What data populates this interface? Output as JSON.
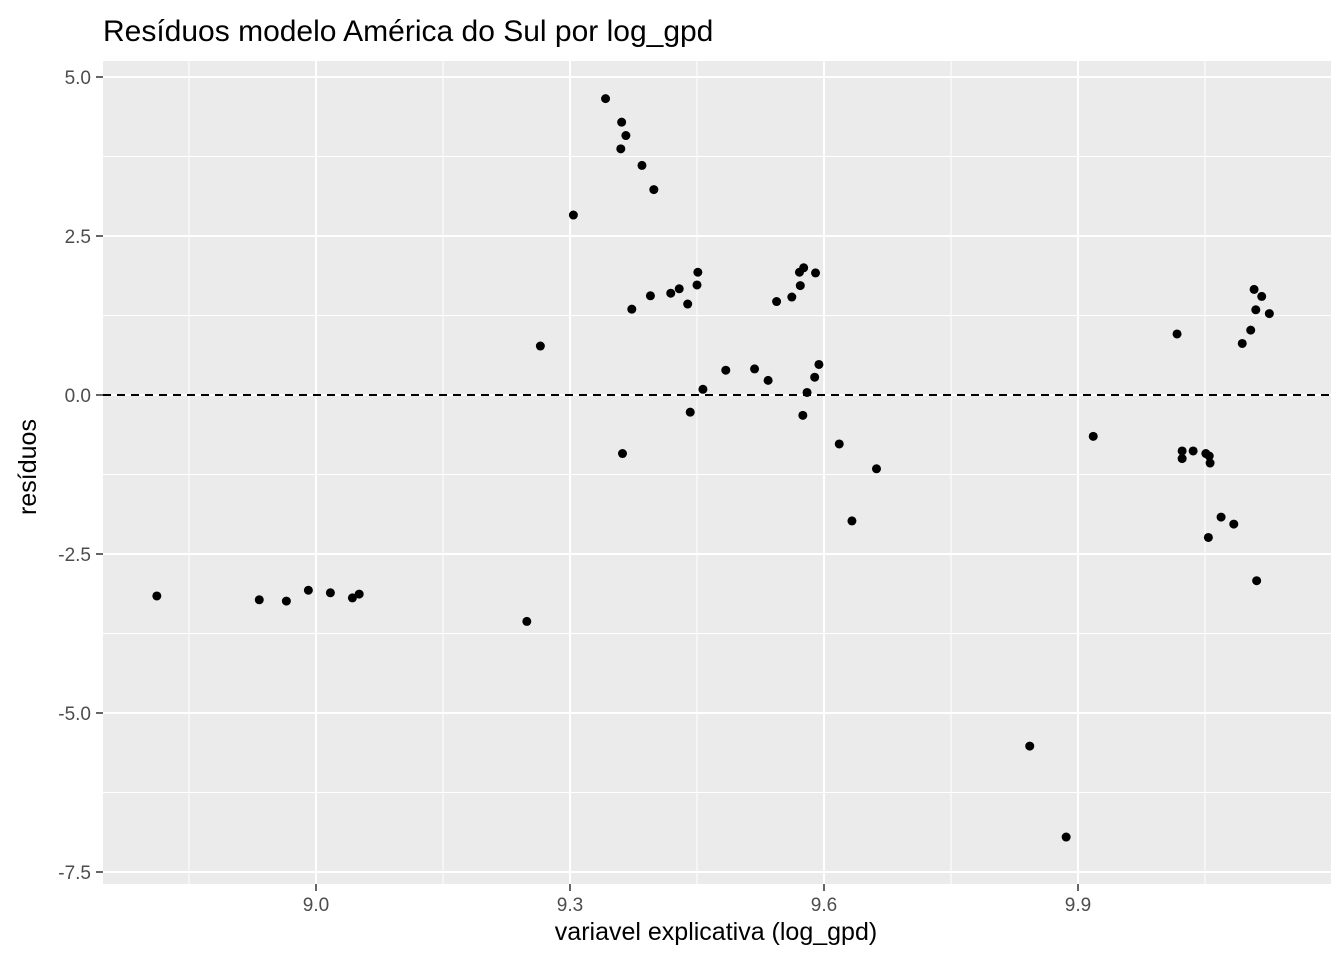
{
  "chart_data": {
    "type": "scatter",
    "title": "Resíduos modelo América do Sul por log_gpd",
    "xlabel": "variavel explicativa (log_gpd)",
    "ylabel": "resíduos",
    "xlim": [
      8.79,
      10.13
    ],
    "ylim": [
      -7.5,
      5.3
    ],
    "x_ticks": [
      9.0,
      9.3,
      9.6,
      9.9
    ],
    "x_tick_labels": [
      "9.0",
      "9.3",
      "9.6",
      "9.9"
    ],
    "y_ticks": [
      5.0,
      2.5,
      0.0,
      -2.5,
      -5.0,
      -7.5
    ],
    "y_tick_labels": [
      "5.0",
      "2.5",
      "0.0",
      "-2.5",
      "-5.0",
      "-7.5"
    ],
    "reference_line": {
      "y": 0.0,
      "style": "dashed"
    },
    "grid": true,
    "colors": {
      "panel_background": "#ebebeb",
      "grid": "#ffffff",
      "points": "#000000"
    },
    "points": [
      {
        "x": 8.812,
        "y": -3.16
      },
      {
        "x": 8.933,
        "y": -3.22
      },
      {
        "x": 8.965,
        "y": -3.24
      },
      {
        "x": 8.991,
        "y": -3.07
      },
      {
        "x": 9.017,
        "y": -3.11
      },
      {
        "x": 9.043,
        "y": -3.19
      },
      {
        "x": 9.051,
        "y": -3.13
      },
      {
        "x": 9.249,
        "y": -3.56
      },
      {
        "x": 9.265,
        "y": 0.77
      },
      {
        "x": 9.304,
        "y": 2.83
      },
      {
        "x": 9.342,
        "y": 4.66
      },
      {
        "x": 9.36,
        "y": 3.87
      },
      {
        "x": 9.361,
        "y": 4.29
      },
      {
        "x": 9.366,
        "y": 4.08
      },
      {
        "x": 9.362,
        "y": -0.92
      },
      {
        "x": 9.373,
        "y": 1.35
      },
      {
        "x": 9.385,
        "y": 3.61
      },
      {
        "x": 9.395,
        "y": 1.56
      },
      {
        "x": 9.399,
        "y": 3.23
      },
      {
        "x": 9.419,
        "y": 1.6
      },
      {
        "x": 9.429,
        "y": 1.67
      },
      {
        "x": 9.439,
        "y": 1.43
      },
      {
        "x": 9.442,
        "y": -0.27
      },
      {
        "x": 9.45,
        "y": 1.73
      },
      {
        "x": 9.451,
        "y": 1.93
      },
      {
        "x": 9.457,
        "y": 0.09
      },
      {
        "x": 9.484,
        "y": 0.39
      },
      {
        "x": 9.518,
        "y": 0.41
      },
      {
        "x": 9.534,
        "y": 0.23
      },
      {
        "x": 9.544,
        "y": 1.47
      },
      {
        "x": 9.562,
        "y": 1.54
      },
      {
        "x": 9.571,
        "y": 1.93
      },
      {
        "x": 9.572,
        "y": 1.72
      },
      {
        "x": 9.576,
        "y": 2.0
      },
      {
        "x": 9.575,
        "y": -0.32
      },
      {
        "x": 9.58,
        "y": 0.04
      },
      {
        "x": 9.589,
        "y": 0.28
      },
      {
        "x": 9.59,
        "y": 1.92
      },
      {
        "x": 9.594,
        "y": 0.48
      },
      {
        "x": 9.618,
        "y": -0.77
      },
      {
        "x": 9.633,
        "y": -1.98
      },
      {
        "x": 9.662,
        "y": -1.16
      },
      {
        "x": 9.843,
        "y": -5.52
      },
      {
        "x": 9.886,
        "y": -6.95
      },
      {
        "x": 9.918,
        "y": -0.65
      },
      {
        "x": 10.017,
        "y": 0.96
      },
      {
        "x": 10.023,
        "y": -0.88
      },
      {
        "x": 10.023,
        "y": -1.0
      },
      {
        "x": 10.036,
        "y": -0.88
      },
      {
        "x": 10.051,
        "y": -0.92
      },
      {
        "x": 10.054,
        "y": -2.24
      },
      {
        "x": 10.055,
        "y": -0.96
      },
      {
        "x": 10.056,
        "y": -1.07
      },
      {
        "x": 10.069,
        "y": -1.92
      },
      {
        "x": 10.084,
        "y": -2.03
      },
      {
        "x": 10.094,
        "y": 0.81
      },
      {
        "x": 10.104,
        "y": 1.02
      },
      {
        "x": 10.108,
        "y": 1.66
      },
      {
        "x": 10.11,
        "y": 1.34
      },
      {
        "x": 10.111,
        "y": -2.92
      },
      {
        "x": 10.117,
        "y": 1.55
      },
      {
        "x": 10.126,
        "y": 1.28
      }
    ]
  }
}
